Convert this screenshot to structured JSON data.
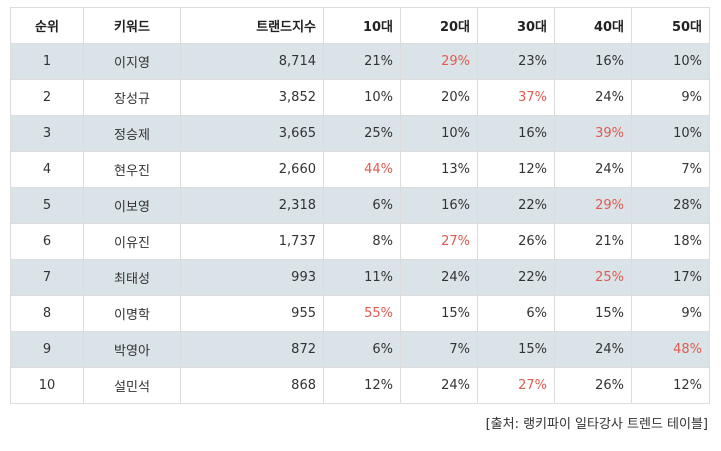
{
  "table": {
    "headers": {
      "rank": "순위",
      "keyword": "키워드",
      "trend_index": "트랜드지수",
      "age10": "10대",
      "age20": "20대",
      "age30": "30대",
      "age40": "40대",
      "age50": "50대"
    },
    "highlight_color": "#e05a4f",
    "stripe_color": "#dae3e8",
    "rows": [
      {
        "rank": "1",
        "keyword": "이지영",
        "trend_index": "8,714",
        "age10": "21%",
        "age20": "29%",
        "age30": "23%",
        "age40": "16%",
        "age50": "10%",
        "highlight": "age20"
      },
      {
        "rank": "2",
        "keyword": "장성규",
        "trend_index": "3,852",
        "age10": "10%",
        "age20": "20%",
        "age30": "37%",
        "age40": "24%",
        "age50": "9%",
        "highlight": "age30"
      },
      {
        "rank": "3",
        "keyword": "정승제",
        "trend_index": "3,665",
        "age10": "25%",
        "age20": "10%",
        "age30": "16%",
        "age40": "39%",
        "age50": "10%",
        "highlight": "age40"
      },
      {
        "rank": "4",
        "keyword": "현우진",
        "trend_index": "2,660",
        "age10": "44%",
        "age20": "13%",
        "age30": "12%",
        "age40": "24%",
        "age50": "7%",
        "highlight": "age10"
      },
      {
        "rank": "5",
        "keyword": "이보영",
        "trend_index": "2,318",
        "age10": "6%",
        "age20": "16%",
        "age30": "22%",
        "age40": "29%",
        "age50": "28%",
        "highlight": "age40"
      },
      {
        "rank": "6",
        "keyword": "이유진",
        "trend_index": "1,737",
        "age10": "8%",
        "age20": "27%",
        "age30": "26%",
        "age40": "21%",
        "age50": "18%",
        "highlight": "age20"
      },
      {
        "rank": "7",
        "keyword": "최태성",
        "trend_index": "993",
        "age10": "11%",
        "age20": "24%",
        "age30": "22%",
        "age40": "25%",
        "age50": "17%",
        "highlight": "age40"
      },
      {
        "rank": "8",
        "keyword": "이명학",
        "trend_index": "955",
        "age10": "55%",
        "age20": "15%",
        "age30": "6%",
        "age40": "15%",
        "age50": "9%",
        "highlight": "age10"
      },
      {
        "rank": "9",
        "keyword": "박영아",
        "trend_index": "872",
        "age10": "6%",
        "age20": "7%",
        "age30": "15%",
        "age40": "24%",
        "age50": "48%",
        "highlight": "age50"
      },
      {
        "rank": "10",
        "keyword": "설민석",
        "trend_index": "868",
        "age10": "12%",
        "age20": "24%",
        "age30": "27%",
        "age40": "26%",
        "age50": "12%",
        "highlight": "age30"
      }
    ]
  },
  "source_note": "[출처: 랭키파이 일타강사 트렌드 테이블]"
}
